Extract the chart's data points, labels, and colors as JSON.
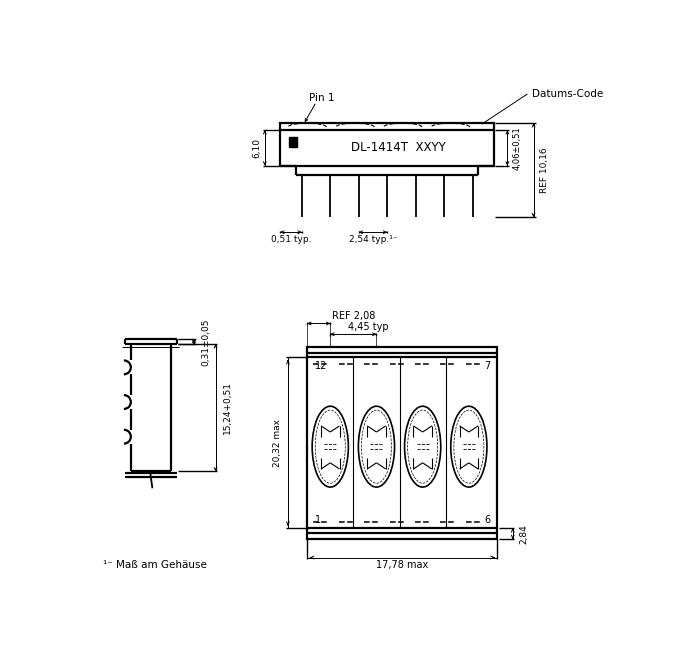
{
  "bg_color": "#ffffff",
  "line_color": "#000000",
  "title": "DL-1414T  XXYY",
  "annotations": {
    "pin1": "Pin 1",
    "datums_code": "Datums-Code",
    "dim_610": "6,10",
    "dim_406": "4,06±0,51",
    "dim_ref1016": "REF 10,16",
    "dim_051typ": "0,51 typ.",
    "dim_254typ": "2,54 typ.¹⁻",
    "dim_ref208": "REF 2,08",
    "dim_445typ": "4,45 typ",
    "dim_2032max": "20,32 max",
    "dim_284": "2,84",
    "dim_1778max": "17,78 max",
    "dim_031": "0,31±0,05",
    "dim_1524": "15,24+0,51",
    "note": "¹⁻ Maß am Gehäuse",
    "num_12": "12",
    "num_7": "7",
    "num_1": "1",
    "num_6": "6"
  }
}
